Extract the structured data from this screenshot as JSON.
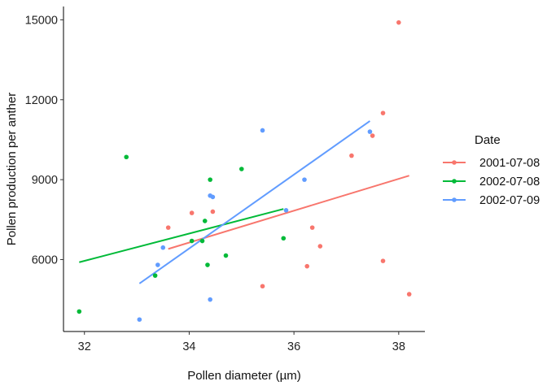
{
  "chart_data": {
    "type": "scatter",
    "xlabel": "Pollen diameter (µm)",
    "ylabel": "Pollen production per anther",
    "xlim": [
      31.6,
      38.5
    ],
    "ylim": [
      3300,
      15500
    ],
    "x_ticks": [
      32,
      34,
      36,
      38
    ],
    "y_ticks": [
      6000,
      9000,
      12000,
      15000
    ],
    "grid": false,
    "legend": {
      "title": "Date",
      "position": "right"
    },
    "series": [
      {
        "name": "2001-07-08",
        "color": "#F8766D",
        "points": [
          {
            "x": 33.6,
            "y": 7200
          },
          {
            "x": 34.05,
            "y": 7750
          },
          {
            "x": 34.45,
            "y": 7800
          },
          {
            "x": 35.4,
            "y": 5000
          },
          {
            "x": 36.25,
            "y": 5750
          },
          {
            "x": 36.35,
            "y": 7200
          },
          {
            "x": 36.5,
            "y": 6500
          },
          {
            "x": 37.1,
            "y": 9900
          },
          {
            "x": 37.5,
            "y": 10650
          },
          {
            "x": 37.7,
            "y": 11500
          },
          {
            "x": 37.7,
            "y": 5950
          },
          {
            "x": 38.0,
            "y": 14900
          },
          {
            "x": 38.2,
            "y": 4700
          }
        ],
        "trend": [
          {
            "x": 33.6,
            "y": 6400
          },
          {
            "x": 38.2,
            "y": 9150
          }
        ]
      },
      {
        "name": "2002-07-08",
        "color": "#00BA38",
        "points": [
          {
            "x": 31.9,
            "y": 4050
          },
          {
            "x": 32.8,
            "y": 9850
          },
          {
            "x": 33.35,
            "y": 5400
          },
          {
            "x": 34.05,
            "y": 6700
          },
          {
            "x": 34.25,
            "y": 6700
          },
          {
            "x": 34.3,
            "y": 7450
          },
          {
            "x": 34.35,
            "y": 5800
          },
          {
            "x": 34.4,
            "y": 9000
          },
          {
            "x": 34.7,
            "y": 6150
          },
          {
            "x": 35.0,
            "y": 9400
          },
          {
            "x": 35.8,
            "y": 6800
          }
        ],
        "trend": [
          {
            "x": 31.9,
            "y": 5900
          },
          {
            "x": 35.8,
            "y": 7900
          }
        ]
      },
      {
        "name": "2002-07-09",
        "color": "#619CFF",
        "points": [
          {
            "x": 33.05,
            "y": 3750
          },
          {
            "x": 33.4,
            "y": 5800
          },
          {
            "x": 33.5,
            "y": 6450
          },
          {
            "x": 34.4,
            "y": 4500
          },
          {
            "x": 34.4,
            "y": 8400
          },
          {
            "x": 34.45,
            "y": 8350
          },
          {
            "x": 35.4,
            "y": 10850
          },
          {
            "x": 35.85,
            "y": 7850
          },
          {
            "x": 36.2,
            "y": 9000
          },
          {
            "x": 37.45,
            "y": 10800
          }
        ],
        "trend": [
          {
            "x": 33.05,
            "y": 5100
          },
          {
            "x": 37.45,
            "y": 11200
          }
        ]
      }
    ]
  }
}
